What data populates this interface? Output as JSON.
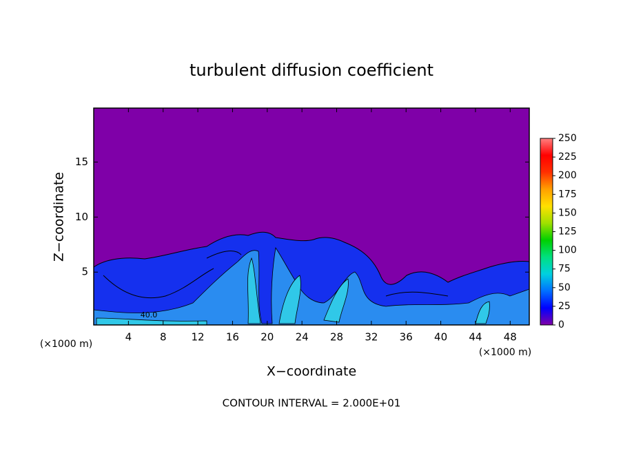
{
  "chart_data": {
    "type": "contour",
    "title": "turbulent diffusion coefficient",
    "xlabel": "X−coordinate",
    "ylabel": "Z−coordinate",
    "x_unit_label": "(×1000 m)",
    "footnote": "CONTOUR INTERVAL = 2.000E+01",
    "contour_label": "40.0",
    "xlim": [
      0,
      50.2
    ],
    "xticks": [
      4,
      8,
      12,
      16,
      20,
      24,
      28,
      32,
      36,
      40,
      44,
      48
    ],
    "ylim": [
      0.2,
      19.9
    ],
    "yticks": [
      5,
      10,
      15
    ],
    "colorbar": {
      "lim": [
        0,
        250
      ],
      "ticks": [
        0,
        25,
        50,
        75,
        100,
        125,
        150,
        175,
        200,
        225,
        250
      ],
      "colors": [
        "#8000a8",
        "#0000ff",
        "#0070ff",
        "#00d0e0",
        "#00e080",
        "#00d000",
        "#a0e000",
        "#ffe000",
        "#ffa000",
        "#ff3000",
        "#ff0000",
        "#ff8080"
      ]
    }
  }
}
